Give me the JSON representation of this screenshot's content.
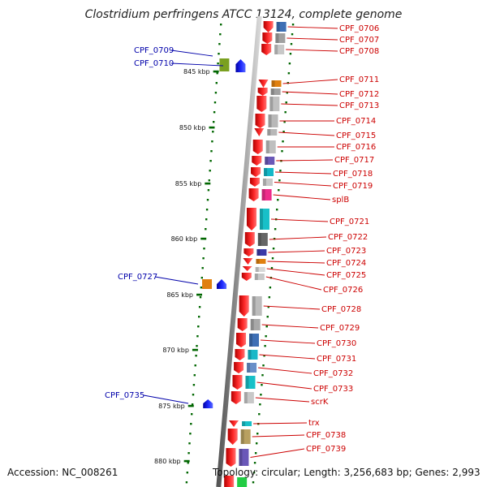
{
  "title": "Clostridium perfringens ATCC 13124, complete genome",
  "accession": "Accession: NC_008261",
  "topology": "Topology: circular; Length: 3,256,683 bp; Genes: 2,993",
  "kbp_ticks": [
    {
      "label": "845 kbp",
      "kbp": 845
    },
    {
      "label": "850 kbp",
      "kbp": 850
    },
    {
      "label": "855 kbp",
      "kbp": 855
    },
    {
      "label": "860 kbp",
      "kbp": 860
    },
    {
      "label": "865 kbp",
      "kbp": 865
    },
    {
      "label": "870 kbp",
      "kbp": 870
    },
    {
      "label": "875 kbp",
      "kbp": 875
    },
    {
      "label": "880 kbp",
      "kbp": 880
    }
  ],
  "minus_strand_genes": [
    "CPF_0709",
    "CPF_0710",
    "CPF_0727",
    "CPF_0735"
  ],
  "plus_strand_genes": [
    "CPF_0706",
    "CPF_0707",
    "CPF_0708",
    "CPF_0711",
    "CPF_0712",
    "CPF_0713",
    "CPF_0714",
    "CPF_0715",
    "CPF_0716",
    "CPF_0717",
    "CPF_0718",
    "CPF_0719",
    "splB",
    "CPF_0721",
    "CPF_0722",
    "CPF_0723",
    "CPF_0724",
    "CPF_0725",
    "CPF_0726",
    "CPF_0728",
    "CPF_0729",
    "CPF_0730",
    "CPF_0731",
    "CPF_0732",
    "CPF_0733",
    "scrK",
    "trx",
    "CPF_0738",
    "CPF_0739"
  ],
  "colors": {
    "plus_strand": "#ee0000",
    "minus_strand": "#0000ee",
    "backbone": "#888888",
    "tick": "#006600",
    "label_plus": "#cc0000",
    "label_minus": "#0000aa"
  }
}
